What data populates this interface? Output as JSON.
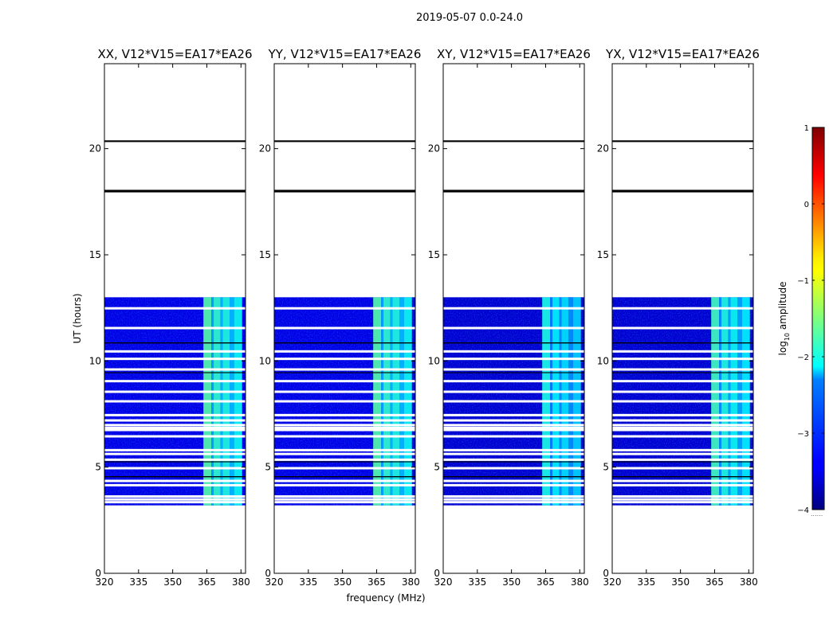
{
  "figure": {
    "suptitle": "2019-05-07 0.0-24.0",
    "xlabel": "frequency (MHz)",
    "ylabel": "UT (hours)",
    "colorbar": {
      "label_main": "log",
      "label_sub": "10",
      "label_tail": " amplitude",
      "range": [
        -4,
        1
      ],
      "ticks": [
        1,
        0,
        -1,
        -2,
        -3,
        -4
      ],
      "tick_labels": [
        "1",
        "0",
        "−1",
        "−2",
        "−3",
        "−4"
      ],
      "footnote": "......"
    }
  },
  "chart_data": {
    "type": "heatmap",
    "xlim": [
      320,
      382
    ],
    "ylim": [
      0,
      24
    ],
    "xticks": [
      320,
      335,
      350,
      365,
      380
    ],
    "xtick_labels": [
      "320",
      "335",
      "350",
      "365",
      "380"
    ],
    "yticks": [
      0,
      5,
      10,
      15,
      20
    ],
    "ytick_labels": [
      "0",
      "5",
      "10",
      "15",
      "20"
    ],
    "data_time_range": [
      3.2,
      13.0
    ],
    "flagged_hours": [
      3.35,
      3.48,
      3.62,
      4.15,
      4.35,
      4.95,
      5.35,
      5.62,
      5.8,
      6.45,
      6.75,
      6.85,
      6.98,
      7.2,
      7.45,
      8.1,
      8.55,
      9.05,
      9.6,
      10.1,
      10.45,
      11.55,
      12.48
    ],
    "black_lines": [
      {
        "hour": 4.55,
        "width": 0.05
      },
      {
        "hour": 5.25,
        "width": 0.04
      },
      {
        "hour": 9.45,
        "width": 0.04
      },
      {
        "hour": 10.85,
        "width": 0.05
      },
      {
        "hour": 18.0,
        "width": 0.12
      },
      {
        "hour": 20.35,
        "width": 0.08
      }
    ],
    "rfi_band_mhz": [
      {
        "from": 363.5,
        "to": 367.0,
        "strength": 1.0
      },
      {
        "from": 367.0,
        "to": 368.0,
        "strength": 0.55
      },
      {
        "from": 368.0,
        "to": 371.0,
        "strength": 0.9
      },
      {
        "from": 371.0,
        "to": 372.0,
        "strength": 0.6
      },
      {
        "from": 372.0,
        "to": 375.0,
        "strength": 0.85
      },
      {
        "from": 375.0,
        "to": 377.0,
        "strength": 0.6
      },
      {
        "from": 377.0,
        "to": 380.5,
        "strength": 0.8
      }
    ],
    "panels": [
      {
        "title": "XX, V12*V15=EA17*EA26",
        "background_log_amplitude": -3.5,
        "rfi_log_amplitude": -1.7
      },
      {
        "title": "YY, V12*V15=EA17*EA26",
        "background_log_amplitude": -3.5,
        "rfi_log_amplitude": -1.7
      },
      {
        "title": "XY, V12*V15=EA17*EA26",
        "background_log_amplitude": -3.6,
        "rfi_log_amplitude": -2.0
      },
      {
        "title": "YX, V12*V15=EA17*EA26",
        "background_log_amplitude": -3.6,
        "rfi_log_amplitude": -1.8
      }
    ]
  }
}
